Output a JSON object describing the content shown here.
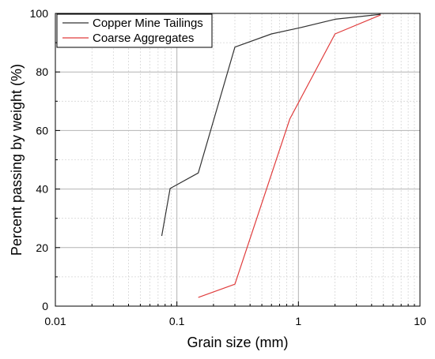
{
  "chart_data": {
    "type": "line",
    "xlabel": "Grain size  (mm)",
    "ylabel": "Percent passing by weight (%)",
    "x_scale": "log",
    "xlim": [
      0.01,
      10
    ],
    "ylim": [
      0,
      100
    ],
    "x_ticks": [
      0.01,
      0.1,
      1,
      10
    ],
    "x_tick_labels": [
      "0.01",
      "0.1",
      "1",
      "10"
    ],
    "y_ticks": [
      0,
      20,
      40,
      60,
      80,
      100
    ],
    "y_tick_labels": [
      "0",
      "20",
      "40",
      "60",
      "80",
      "100"
    ],
    "grid": true,
    "legend_position": "top-left",
    "series": [
      {
        "name": "Copper Mine Tailings",
        "color": "#333333",
        "x": [
          0.075,
          0.088,
          0.15,
          0.3,
          0.6,
          1.0,
          2.0,
          4.75
        ],
        "y": [
          24,
          40.2,
          45.5,
          88.5,
          93,
          95,
          98,
          99.7
        ]
      },
      {
        "name": "Coarse Aggregates",
        "color": "#e03c3c",
        "x": [
          0.15,
          0.3,
          0.85,
          2.0,
          4.75
        ],
        "y": [
          3,
          7.5,
          64,
          93,
          99.5
        ]
      }
    ]
  }
}
